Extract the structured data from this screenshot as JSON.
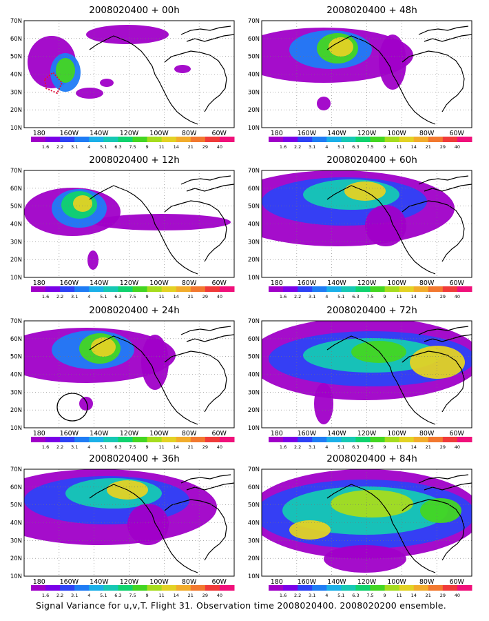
{
  "panels": [
    {
      "id": "p00",
      "title": "2008020400 + 00h",
      "col": 0,
      "row": 0,
      "level": 0,
      "annotation": "dotted-red-region"
    },
    {
      "id": "p12",
      "title": "2008020400 + 12h",
      "col": 0,
      "row": 1,
      "level": 1
    },
    {
      "id": "p24",
      "title": "2008020400 + 24h",
      "col": 0,
      "row": 2,
      "level": 2,
      "annotation": "black-circle"
    },
    {
      "id": "p36",
      "title": "2008020400 + 36h",
      "col": 0,
      "row": 3,
      "level": 3
    },
    {
      "id": "p48",
      "title": "2008020400 + 48h",
      "col": 1,
      "row": 0,
      "level": 2
    },
    {
      "id": "p60",
      "title": "2008020400 + 60h",
      "col": 1,
      "row": 1,
      "level": 3
    },
    {
      "id": "p72",
      "title": "2008020400 + 72h",
      "col": 1,
      "row": 2,
      "level": 4
    },
    {
      "id": "p84",
      "title": "2008020400 + 84h",
      "col": 1,
      "row": 3,
      "level": 5
    }
  ],
  "lat_labels": [
    "70N",
    "60N",
    "50N",
    "40N",
    "30N",
    "20N",
    "10N"
  ],
  "lon_labels": [
    "180",
    "160W",
    "140W",
    "120W",
    "100W",
    "80W",
    "60W"
  ],
  "colorbar": {
    "labels": [
      "1.6",
      "2.2",
      "3.1",
      "4",
      "5.1",
      "6.3",
      "7.5",
      "9",
      "11",
      "14",
      "21",
      "29",
      "40"
    ],
    "colors": [
      "#a000c8",
      "#7a00e8",
      "#2e42f5",
      "#1f7cf5",
      "#1bb0e8",
      "#16c8b4",
      "#10d26e",
      "#43d622",
      "#a6dc1e",
      "#e3d224",
      "#f2ac2c",
      "#f2782f",
      "#f03a3a",
      "#f0107a"
    ]
  },
  "caption": "Signal Variance for u,v,T. Flight 31. Observation time 2008020400. 2008020200 ensemble."
}
